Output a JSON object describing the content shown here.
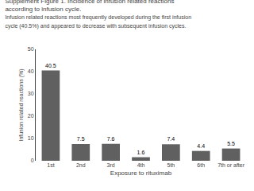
{
  "chart_data": {
    "type": "bar",
    "title": "Supplement Figure 1. Incidence of infusion related reactions according to infusion cycle.",
    "subtitle": "Infusion related reactions most frequently developed during the first infusion cycle (40.5%) and appeared to decrease with subsequent infusion cycles.",
    "xlabel": "Exposure to rituximab",
    "ylabel": "Infusion related reactions (%)",
    "categories": [
      "1st",
      "2nd",
      "3rd",
      "4th",
      "5th",
      "6th",
      "7th or after"
    ],
    "values": [
      40.5,
      7.5,
      7.6,
      1.6,
      7.4,
      4.4,
      5.5
    ],
    "color": "#606060",
    "ylim": [
      0,
      50
    ],
    "yticks": [
      0,
      10,
      20,
      30,
      40,
      50
    ],
    "grid": false,
    "data_labels": true
  }
}
